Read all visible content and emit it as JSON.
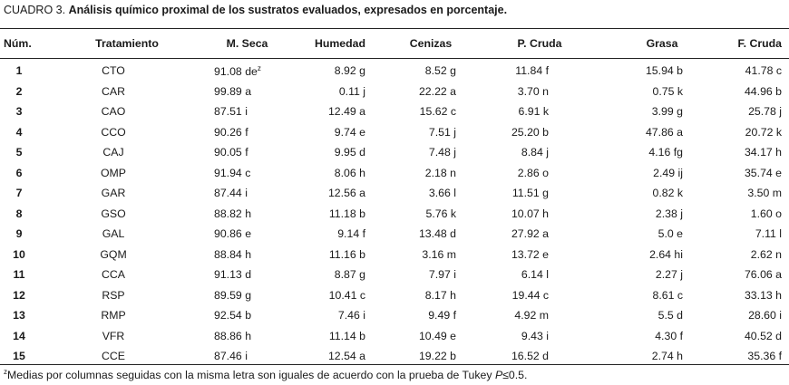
{
  "caption": {
    "lead": "CUADRO 3.",
    "rest": "Análisis químico proximal de los sustratos evaluados, expresados en porcentaje."
  },
  "headers": {
    "num": "Núm.",
    "tratamiento": "Tratamiento",
    "m_seca": "M. Seca",
    "humedad": "Humedad",
    "cenizas": "Cenizas",
    "p_cruda": "P. Cruda",
    "grasa": "Grasa",
    "f_cruda": "F. Cruda"
  },
  "rows": [
    {
      "num": "1",
      "trat": "CTO",
      "ms": "91.08 de",
      "ms_sup": "z",
      "hu": "8.92 g",
      "ce": "8.52 g",
      "pc": "11.84 f",
      "gr": "15.94 b",
      "fc": "41.78 c"
    },
    {
      "num": "2",
      "trat": "CAR",
      "ms": "99.89 a",
      "ms_sup": "",
      "hu": "0.11 j",
      "ce": "22.22 a",
      "pc": "3.70 n",
      "gr": "0.75 k",
      "fc": "44.96 b"
    },
    {
      "num": "3",
      "trat": "CAO",
      "ms": "87.51 i",
      "ms_sup": "",
      "hu": "12.49 a",
      "ce": "15.62 c",
      "pc": "6.91 k",
      "gr": "3.99 g",
      "fc": "25.78 j"
    },
    {
      "num": "4",
      "trat": "CCO",
      "ms": "90.26 f",
      "ms_sup": "",
      "hu": "9.74 e",
      "ce": "7.51 j",
      "pc": "25.20 b",
      "gr": "47.86 a",
      "fc": "20.72 k"
    },
    {
      "num": "5",
      "trat": "CAJ",
      "ms": "90.05 f",
      "ms_sup": "",
      "hu": "9.95 d",
      "ce": "7.48 j",
      "pc": "8.84 j",
      "gr": "4.16 fg",
      "fc": "34.17 h"
    },
    {
      "num": "6",
      "trat": "OMP",
      "ms": "91.94 c",
      "ms_sup": "",
      "hu": "8.06 h",
      "ce": "2.18 n",
      "pc": "2.86 o",
      "gr": "2.49 ij",
      "fc": "35.74 e"
    },
    {
      "num": "7",
      "trat": "GAR",
      "ms": "87.44 i",
      "ms_sup": "",
      "hu": "12.56 a",
      "ce": "3.66 l",
      "pc": "11.51 g",
      "gr": "0.82 k",
      "fc": "3.50 m"
    },
    {
      "num": "8",
      "trat": "GSO",
      "ms": "88.82 h",
      "ms_sup": "",
      "hu": "11.18 b",
      "ce": "5.76 k",
      "pc": "10.07 h",
      "gr": "2.38 j",
      "fc": "1.60 o"
    },
    {
      "num": "9",
      "trat": "GAL",
      "ms": "90.86 e",
      "ms_sup": "",
      "hu": "9.14 f",
      "ce": "13.48 d",
      "pc": "27.92 a",
      "gr": "5.0 e",
      "fc": "7.11 l"
    },
    {
      "num": "10",
      "trat": "GQM",
      "ms": "88.84 h",
      "ms_sup": "",
      "hu": "11.16 b",
      "ce": "3.16 m",
      "pc": "13.72 e",
      "gr": "2.64 hi",
      "fc": "2.62 n"
    },
    {
      "num": "11",
      "trat": "CCA",
      "ms": "91.13 d",
      "ms_sup": "",
      "hu": "8.87 g",
      "ce": "7.97 i",
      "pc": "6.14 l",
      "gr": "2.27 j",
      "fc": "76.06 a"
    },
    {
      "num": "12",
      "trat": "RSP",
      "ms": "89.59 g",
      "ms_sup": "",
      "hu": "10.41 c",
      "ce": "8.17 h",
      "pc": "19.44 c",
      "gr": "8.61 c",
      "fc": "33.13 h"
    },
    {
      "num": "13",
      "trat": "RMP",
      "ms": "92.54 b",
      "ms_sup": "",
      "hu": "7.46 i",
      "ce": "9.49 f",
      "pc": "4.92 m",
      "gr": "5.5 d",
      "fc": "28.60 i"
    },
    {
      "num": "14",
      "trat": "VFR",
      "ms": "88.86 h",
      "ms_sup": "",
      "hu": "11.14 b",
      "ce": "10.49 e",
      "pc": "9.43 i",
      "gr": "4.30 f",
      "fc": "40.52 d"
    },
    {
      "num": "15",
      "trat": "CCE",
      "ms": "87.46 i",
      "ms_sup": "",
      "hu": "12.54 a",
      "ce": "19.22 b",
      "pc": "16.52 d",
      "gr": "2.74 h",
      "fc": "35.36 f"
    }
  ],
  "footnote": {
    "sup": "z",
    "text": "Medias por columnas seguidas con la misma letra son iguales de acuerdo con la prueba de Tukey ",
    "p": "P",
    "tail": "≤0.5."
  }
}
